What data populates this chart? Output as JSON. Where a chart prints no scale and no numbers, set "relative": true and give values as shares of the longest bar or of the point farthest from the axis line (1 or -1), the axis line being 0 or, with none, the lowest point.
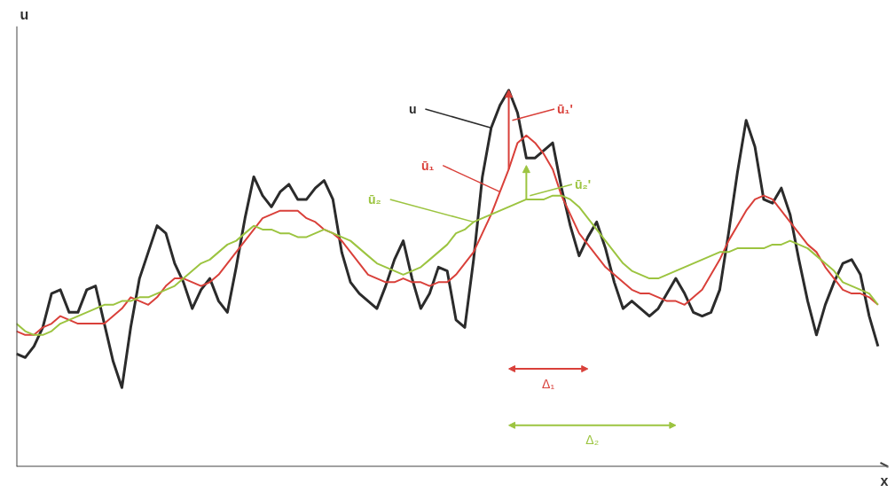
{
  "chart_data": {
    "type": "line",
    "relative": true,
    "xlabel": "x",
    "ylabel": "u",
    "categories": [
      null,
      null,
      null,
      null,
      null,
      null,
      null,
      null,
      null,
      null,
      null,
      null,
      null,
      null,
      null,
      null,
      null,
      null,
      null,
      null,
      null,
      null,
      null,
      null,
      null,
      null,
      null,
      null,
      null,
      null,
      null,
      null,
      null,
      null,
      null,
      null,
      null,
      null,
      null,
      null,
      null,
      null,
      null,
      null,
      null,
      null,
      null,
      null,
      null,
      null,
      null,
      null,
      null,
      null,
      null,
      null,
      null,
      null,
      null,
      null,
      null,
      null,
      null,
      null,
      null,
      null,
      null,
      null,
      null,
      null,
      null,
      null,
      null,
      null,
      null,
      null,
      null,
      null,
      null,
      null,
      null,
      null,
      null,
      null,
      null,
      null,
      null,
      null,
      null,
      null,
      null,
      null,
      null,
      null,
      null,
      null,
      null,
      null,
      null
    ],
    "series": [
      {
        "name": "u",
        "color": "#2b2b2b",
        "values": [
          0.3,
          0.29,
          0.32,
          0.37,
          0.46,
          0.47,
          0.41,
          0.41,
          0.47,
          0.48,
          0.38,
          0.28,
          0.21,
          0.37,
          0.5,
          0.57,
          0.64,
          0.62,
          0.54,
          0.49,
          0.42,
          0.47,
          0.5,
          0.44,
          0.41,
          0.53,
          0.66,
          0.77,
          0.72,
          0.69,
          0.73,
          0.75,
          0.71,
          0.71,
          0.74,
          0.76,
          0.71,
          0.57,
          0.49,
          0.46,
          0.44,
          0.42,
          0.48,
          0.55,
          0.6,
          0.5,
          0.42,
          0.46,
          0.53,
          0.52,
          0.39,
          0.37,
          0.55,
          0.77,
          0.9,
          0.96,
          1.0,
          0.94,
          0.82,
          0.82,
          0.84,
          0.86,
          0.74,
          0.64,
          0.56,
          0.61,
          0.65,
          0.58,
          0.49,
          0.42,
          0.44,
          0.42,
          0.4,
          0.42,
          0.46,
          0.5,
          0.46,
          0.41,
          0.4,
          0.41,
          0.47,
          0.62,
          0.78,
          0.92,
          0.85,
          0.71,
          0.7,
          0.74,
          0.67,
          0.55,
          0.44,
          0.35,
          0.43,
          0.49,
          0.54,
          0.55,
          0.51,
          0.4,
          0.32
        ]
      },
      {
        "name": "ū₁",
        "color": "#d9403a",
        "values": [
          0.36,
          0.35,
          0.35,
          0.37,
          0.38,
          0.4,
          0.39,
          0.38,
          0.38,
          0.38,
          0.38,
          0.4,
          0.42,
          0.45,
          0.44,
          0.43,
          0.45,
          0.48,
          0.5,
          0.5,
          0.49,
          0.48,
          0.49,
          0.51,
          0.54,
          0.57,
          0.6,
          0.63,
          0.66,
          0.67,
          0.68,
          0.68,
          0.68,
          0.66,
          0.65,
          0.63,
          0.62,
          0.6,
          0.57,
          0.54,
          0.51,
          0.5,
          0.49,
          0.49,
          0.5,
          0.49,
          0.49,
          0.48,
          0.49,
          0.49,
          0.51,
          0.54,
          0.57,
          0.62,
          0.67,
          0.73,
          0.79,
          0.86,
          0.88,
          0.86,
          0.83,
          0.79,
          0.72,
          0.67,
          0.62,
          0.59,
          0.56,
          0.53,
          0.51,
          0.49,
          0.47,
          0.46,
          0.46,
          0.45,
          0.44,
          0.44,
          0.43,
          0.45,
          0.47,
          0.51,
          0.55,
          0.6,
          0.64,
          0.68,
          0.71,
          0.72,
          0.71,
          0.68,
          0.65,
          0.62,
          0.59,
          0.57,
          0.53,
          0.5,
          0.47,
          0.46,
          0.46,
          0.45,
          0.43
        ]
      },
      {
        "name": "ū₂",
        "color": "#9cc440",
        "values": [
          0.38,
          0.36,
          0.35,
          0.35,
          0.36,
          0.38,
          0.39,
          0.4,
          0.41,
          0.42,
          0.43,
          0.43,
          0.44,
          0.44,
          0.45,
          0.45,
          0.46,
          0.47,
          0.48,
          0.5,
          0.52,
          0.54,
          0.55,
          0.57,
          0.59,
          0.6,
          0.62,
          0.64,
          0.63,
          0.63,
          0.62,
          0.62,
          0.61,
          0.61,
          0.62,
          0.63,
          0.62,
          0.61,
          0.6,
          0.58,
          0.56,
          0.54,
          0.53,
          0.52,
          0.51,
          0.52,
          0.53,
          0.55,
          0.57,
          0.59,
          0.62,
          0.63,
          0.65,
          0.66,
          0.67,
          0.68,
          0.69,
          0.7,
          0.71,
          0.71,
          0.71,
          0.72,
          0.72,
          0.71,
          0.69,
          0.66,
          0.63,
          0.6,
          0.57,
          0.54,
          0.52,
          0.51,
          0.5,
          0.5,
          0.51,
          0.52,
          0.53,
          0.54,
          0.55,
          0.56,
          0.57,
          0.57,
          0.58,
          0.58,
          0.58,
          0.58,
          0.59,
          0.59,
          0.6,
          0.59,
          0.58,
          0.56,
          0.54,
          0.52,
          0.49,
          0.48,
          0.47,
          0.46,
          0.43
        ]
      }
    ],
    "annotations": [
      "ū₁'",
      "ū₂'",
      "Δ₁",
      "Δ₂"
    ]
  }
}
